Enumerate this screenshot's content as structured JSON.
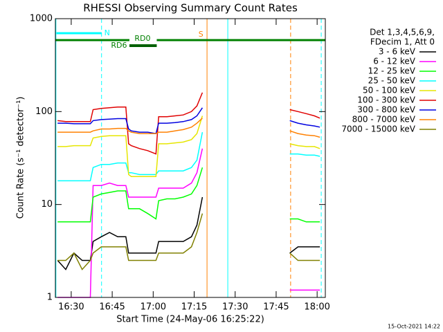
{
  "chart_data": {
    "type": "line",
    "title": "RHESSI Observing Summary Count Rates",
    "xlabel": "Start Time (24-May-06 16:25:22)",
    "ylabel": "Count Rate (s⁻¹ detector⁻¹)",
    "footer": "15-Oct-2021 14:22",
    "legend_header": [
      "Det 1,3,4,5,6,9,",
      "FDecim 1, Att 0"
    ],
    "log_y": true,
    "xlim": [
      984.2,
      1083.0
    ],
    "ylim": [
      1,
      1000
    ],
    "yticks": [
      1,
      10,
      100,
      1000
    ],
    "xticks": [
      {
        "value": 990,
        "label": "16:30"
      },
      {
        "value": 1005,
        "label": "16:45"
      },
      {
        "value": 1020,
        "label": "17:00"
      },
      {
        "value": 1035,
        "label": "17:15"
      },
      {
        "value": 1050,
        "label": "17:30"
      },
      {
        "value": 1065,
        "label": "17:45"
      },
      {
        "value": 1080,
        "label": "18:00"
      }
    ],
    "x": [
      985,
      988,
      991,
      994,
      997,
      998,
      1001,
      1004,
      1007,
      1010,
      1011,
      1012,
      1015,
      1018,
      1021,
      1022,
      1025,
      1028,
      1031,
      1034,
      1036,
      1038,
      1040,
      1070,
      1073,
      1076,
      1079,
      1081
    ],
    "series": [
      {
        "name": "3 - 6 keV",
        "color": "#000000",
        "values": [
          2.5,
          2,
          3,
          2.5,
          2.5,
          4,
          4.5,
          5,
          4.5,
          4.5,
          3,
          3,
          3,
          3,
          3,
          4,
          4,
          4,
          4,
          4.5,
          6,
          12,
          null,
          3,
          3.5,
          3.5,
          3.5,
          3.5
        ]
      },
      {
        "name": "6 - 12 keV",
        "color": "#ff00ff",
        "values": [
          1,
          1,
          1,
          1,
          1,
          16,
          16,
          17,
          16,
          16,
          12,
          12,
          12,
          12,
          12,
          15,
          15,
          15,
          15,
          17,
          22,
          40,
          null,
          1.2,
          1.2,
          1.2,
          1.2,
          1.2
        ]
      },
      {
        "name": "12 - 25 keV",
        "color": "#00ff00",
        "values": [
          6.5,
          6.5,
          6.5,
          6.5,
          6.5,
          12,
          13,
          13.5,
          14,
          14,
          9,
          9,
          9,
          8,
          7,
          11,
          11.5,
          11.5,
          12,
          13,
          16,
          25,
          null,
          7,
          7,
          6.5,
          6.5,
          6.5
        ]
      },
      {
        "name": "25 - 50 keV",
        "color": "#00ffff",
        "values": [
          18,
          18,
          18,
          18,
          18,
          25,
          27,
          27,
          28,
          28,
          22,
          22,
          21,
          21,
          21,
          23,
          23,
          23,
          23,
          25,
          30,
          60,
          null,
          35,
          35,
          34,
          34,
          33
        ]
      },
      {
        "name": "50 - 100 keV",
        "color": "#e6e600",
        "values": [
          42,
          42,
          43,
          43,
          43,
          52,
          54,
          55,
          55,
          55,
          21,
          20,
          20,
          20,
          20,
          45,
          45,
          46,
          47,
          50,
          58,
          90,
          null,
          45,
          43,
          42,
          42,
          40
        ]
      },
      {
        "name": "100 - 300 keV",
        "color": "#e00000",
        "values": [
          80,
          78,
          78,
          78,
          78,
          105,
          108,
          110,
          112,
          112,
          45,
          43,
          40,
          38,
          35,
          88,
          88,
          90,
          92,
          100,
          115,
          160,
          null,
          105,
          100,
          95,
          90,
          85
        ]
      },
      {
        "name": "300 - 800 keV",
        "color": "#0000e0",
        "values": [
          75,
          75,
          74,
          74,
          74,
          80,
          82,
          83,
          84,
          84,
          65,
          62,
          60,
          60,
          58,
          75,
          75,
          76,
          78,
          82,
          90,
          110,
          null,
          80,
          75,
          72,
          70,
          68
        ]
      },
      {
        "name": "800 - 7000 keV",
        "color": "#ff8000",
        "values": [
          60,
          60,
          60,
          60,
          60,
          62,
          65,
          65,
          66,
          66,
          62,
          60,
          58,
          58,
          58,
          60,
          60,
          62,
          64,
          68,
          75,
          85,
          null,
          62,
          58,
          56,
          55,
          53
        ]
      },
      {
        "name": "7000 - 15000 keV",
        "color": "#808000",
        "values": [
          2.5,
          2.5,
          3,
          2,
          2.5,
          3,
          3.5,
          3.5,
          3.5,
          3.5,
          2.5,
          2.5,
          2.5,
          2.5,
          2.5,
          3,
          3,
          3,
          3,
          3.5,
          5,
          8,
          null,
          3,
          2.5,
          2.5,
          2.5,
          2.5
        ]
      }
    ],
    "flags": [
      {
        "label": "N",
        "color": "#00ffff",
        "start": 984.6,
        "end": 1001.1
      },
      {
        "label": "S",
        "color": "#ff8000",
        "start": 1040.0,
        "end": 1070.3
      },
      {
        "color": "#00ffff",
        "start": 1047.5,
        "end": 1081.5
      },
      {
        "label": "RD0",
        "color": "#008000",
        "start": 984.2,
        "end": 1011.3
      },
      {
        "color": "#008000",
        "start": 1021.3,
        "end": 1083.0
      },
      {
        "label": "RD6",
        "color": "#008000",
        "start": 1011.3,
        "end": 1021.3
      }
    ],
    "markers": [
      {
        "x": 984.4,
        "color": "#00ffff",
        "dashed": false
      },
      {
        "x": 1001.1,
        "color": "#00ffff",
        "dashed": true
      },
      {
        "x": 1039.7,
        "color": "#ff8000",
        "dashed": false
      },
      {
        "x": 1047.3,
        "color": "#00ffff",
        "dashed": false
      },
      {
        "x": 1070.3,
        "color": "#ff8000",
        "dashed": true
      },
      {
        "x": 1081.5,
        "color": "#00ffff",
        "dashed": true
      }
    ]
  }
}
